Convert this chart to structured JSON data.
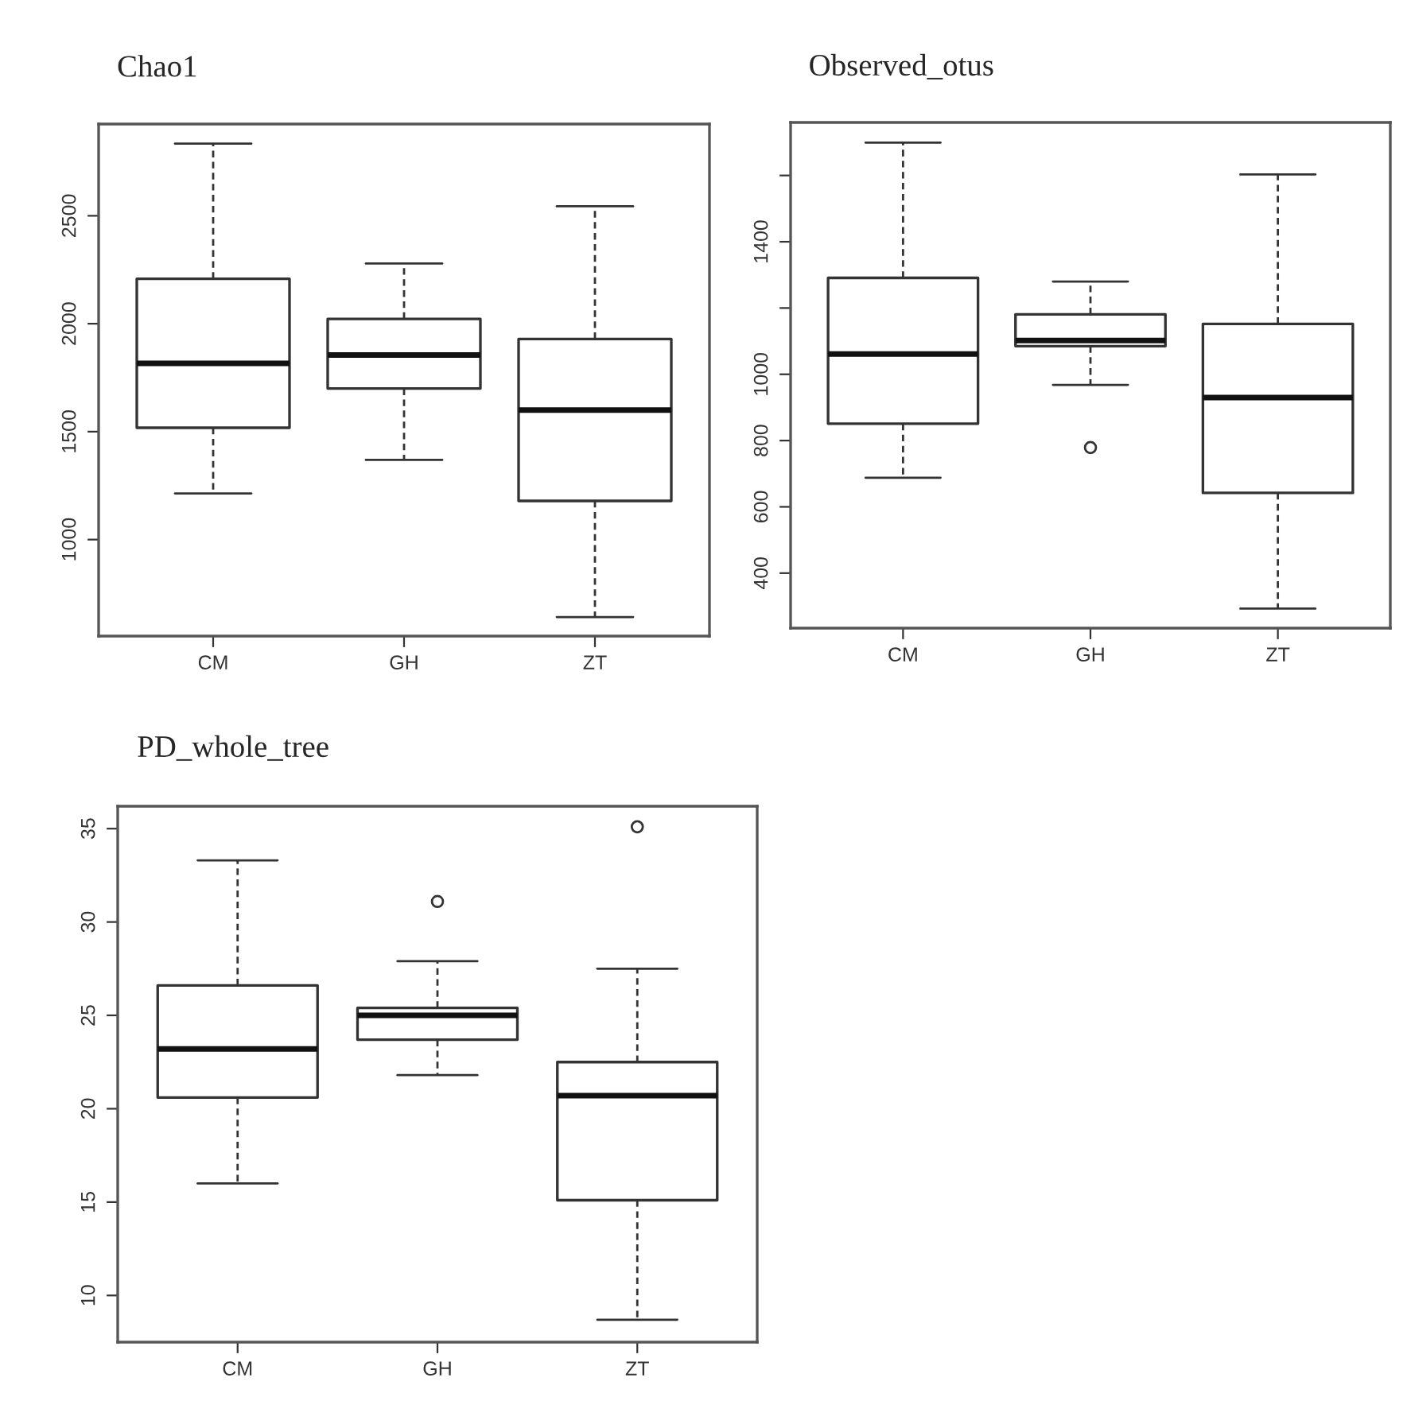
{
  "chart_data": [
    {
      "type": "box",
      "title": "Chao1",
      "categories": [
        "CM",
        "GH",
        "ZT"
      ],
      "ylim": [
        553,
        2925
      ],
      "yticks": [
        1000,
        1500,
        2000,
        2500
      ],
      "boxes": [
        {
          "low": 1214,
          "q1": 1518,
          "median": 1816,
          "q3": 2208,
          "high": 2834
        },
        {
          "low": 1369,
          "q1": 1700,
          "median": 1855,
          "q3": 2022,
          "high": 2279
        },
        {
          "low": 641,
          "q1": 1179,
          "median": 1600,
          "q3": 1929,
          "high": 2544
        }
      ]
    },
    {
      "type": "box",
      "title": "Observed_otus",
      "categories": [
        "CM",
        "GH",
        "ZT"
      ],
      "ylim": [
        234,
        1760
      ],
      "yticks": [
        400,
        600,
        800,
        1000,
        {
          "value": 1200,
          "label": null
        },
        1400,
        {
          "value": 1600,
          "label": null
        }
      ],
      "boxes": [
        {
          "low": 688,
          "q1": 851,
          "median": 1061,
          "q3": 1291,
          "high": 1699
        },
        {
          "low": 968,
          "q1": 1085,
          "median": 1102,
          "q3": 1181,
          "high": 1280,
          "outliers": [
            779
          ]
        },
        {
          "low": 293,
          "q1": 642,
          "median": 930,
          "q3": 1152,
          "high": 1603
        }
      ]
    },
    {
      "type": "box",
      "title": "PD_whole_tree",
      "categories": [
        "CM",
        "GH",
        "ZT"
      ],
      "ylim": [
        7.5,
        36.2
      ],
      "yticks": [
        10,
        15,
        20,
        25,
        30,
        35
      ],
      "boxes": [
        {
          "low": 16.0,
          "q1": 20.6,
          "median": 23.2,
          "q3": 26.6,
          "high": 33.3
        },
        {
          "low": 21.8,
          "q1": 23.7,
          "median": 25.0,
          "q3": 25.4,
          "high": 27.9,
          "outliers": [
            31.1
          ]
        },
        {
          "low": 8.7,
          "q1": 15.1,
          "median": 20.7,
          "q3": 22.5,
          "high": 27.5,
          "outliers": [
            35.1
          ]
        }
      ]
    }
  ]
}
